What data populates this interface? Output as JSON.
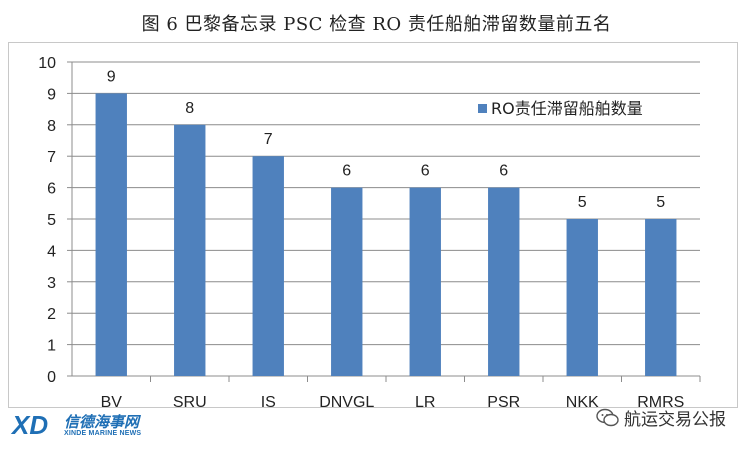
{
  "caption": "图 6  巴黎备忘录 PSC 检查 RO 责任船舶滞留数量前五名",
  "watermark_left": {
    "logo_text": "XD",
    "name_cn": "信德海事网",
    "name_en": "XINDE MARINE NEWS"
  },
  "watermark_right": {
    "icon": "wechat-icon",
    "text": "航运交易公报"
  },
  "chart_data": {
    "type": "bar",
    "categories": [
      "BV",
      "SRU",
      "IS",
      "DNVGL",
      "LR",
      "PSR",
      "NKK",
      "RMRS"
    ],
    "series": [
      {
        "name": "RO责任滞留船舶数量",
        "values": [
          9,
          8,
          7,
          6,
          6,
          6,
          5,
          5
        ],
        "color": "#4f81bd"
      }
    ],
    "ylim": [
      0,
      10
    ],
    "yticks": [
      0,
      1,
      2,
      3,
      4,
      5,
      6,
      7,
      8,
      9,
      10
    ],
    "grid": true,
    "legend": "top-right",
    "data_labels": true
  }
}
